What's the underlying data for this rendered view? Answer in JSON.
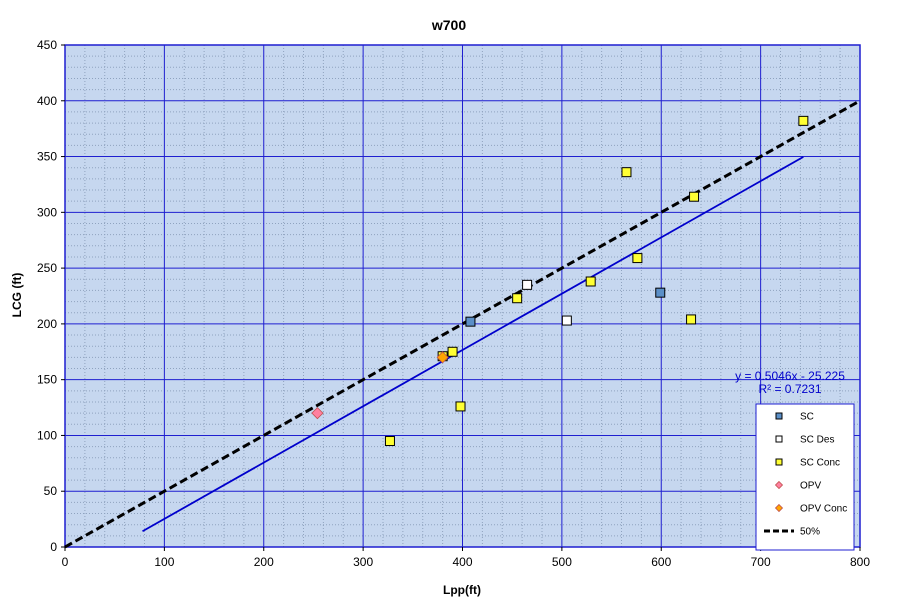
{
  "chart_data": {
    "type": "scatter",
    "title": "w700",
    "xlabel": "Lpp(ft)",
    "ylabel": "LCG (ft)",
    "xlim": [
      0,
      800
    ],
    "ylim": [
      0,
      450
    ],
    "xticks": [
      0,
      100,
      200,
      300,
      400,
      500,
      600,
      700,
      800
    ],
    "yticks": [
      0,
      50,
      100,
      150,
      200,
      250,
      300,
      350,
      400,
      450
    ],
    "grid": true,
    "plot_background": "#c6d7ef",
    "legend_position": "bottom-right",
    "series": [
      {
        "name": "SC",
        "marker": "square",
        "color": "#5b8fc7",
        "points": [
          [
            408,
            202
          ],
          [
            599,
            228
          ]
        ]
      },
      {
        "name": "SC Des",
        "marker": "square",
        "color": "#ffffff",
        "points": [
          [
            465,
            235
          ],
          [
            505,
            203
          ]
        ]
      },
      {
        "name": "SC Conc",
        "marker": "square",
        "color": "#ffff33",
        "points": [
          [
            327,
            95
          ],
          [
            380,
            171
          ],
          [
            390,
            175
          ],
          [
            398,
            126
          ],
          [
            455,
            223
          ],
          [
            529,
            238
          ],
          [
            565,
            336
          ],
          [
            576,
            259
          ],
          [
            630,
            204
          ],
          [
            633,
            314
          ],
          [
            743,
            382
          ]
        ]
      },
      {
        "name": "OPV",
        "marker": "diamond",
        "color": "#ff7f9f",
        "points": [
          [
            254,
            120
          ]
        ]
      },
      {
        "name": "OPV Conc",
        "marker": "diamond",
        "color": "#ffa500",
        "points": [
          [
            380,
            170
          ]
        ]
      }
    ],
    "lines": [
      {
        "name": "50%",
        "style": "dashed",
        "color": "#000000",
        "points": [
          [
            0,
            0
          ],
          [
            800,
            400
          ]
        ]
      },
      {
        "name": "trendline",
        "style": "solid",
        "color": "#0000cc",
        "points": [
          [
            78,
            14.1
          ],
          [
            743,
            349.7
          ]
        ]
      }
    ],
    "annotations": {
      "equation": "y = 0.5046x - 25.225",
      "r_squared": "R² = 0.7231"
    }
  }
}
